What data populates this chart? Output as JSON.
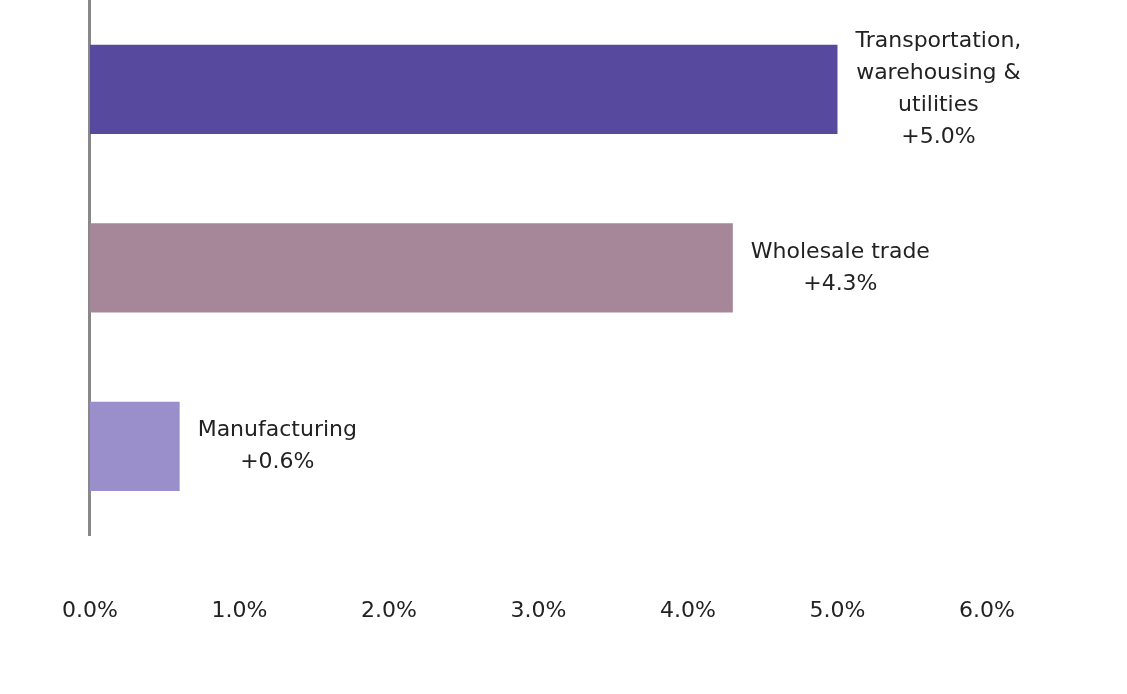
{
  "chart_data": {
    "type": "bar",
    "orientation": "horizontal",
    "categories": [
      "Transportation, warehousing & utilities",
      "Wholesale trade",
      "Manufacturing"
    ],
    "values": [
      5.0,
      4.3,
      0.6
    ],
    "colors": [
      "#574a9e",
      "#a68799",
      "#9a8fcb"
    ],
    "value_labels": [
      "+5.0%",
      "+4.3%",
      "+0.6%"
    ],
    "xlim": [
      0,
      6
    ],
    "xticks": [
      {
        "value": 0,
        "label": "0.0%"
      },
      {
        "value": 1,
        "label": "1.0%"
      },
      {
        "value": 2,
        "label": "2.0%"
      },
      {
        "value": 3,
        "label": "3.0%"
      },
      {
        "value": 4,
        "label": "4.0%"
      },
      {
        "value": 5,
        "label": "5.0%"
      },
      {
        "value": 6,
        "label": "6.0%"
      }
    ],
    "grid": false,
    "legend": false,
    "tick_labels": "x"
  }
}
